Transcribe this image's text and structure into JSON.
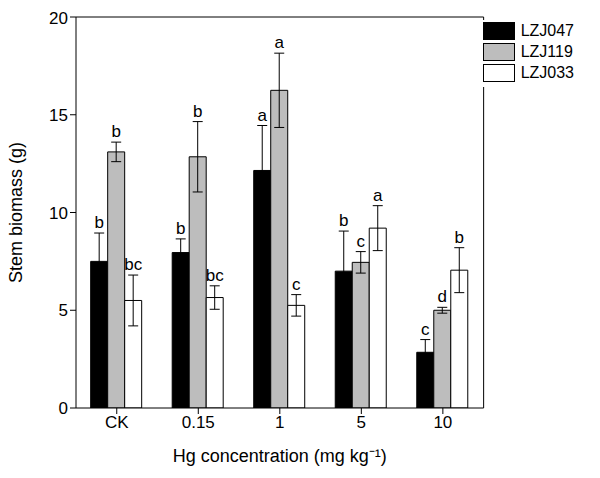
{
  "chart_data": {
    "type": "bar",
    "categories": [
      "CK",
      "0.15",
      "1",
      "5",
      "10"
    ],
    "x_label": "Hg concentration (mg kg⁻¹)",
    "y_label": "Stem biomass (g)",
    "ylim": [
      0,
      20
    ],
    "yticks": [
      0,
      5,
      10,
      15,
      20
    ],
    "legend": "upper right",
    "series": [
      {
        "name": "LZJ047",
        "color": "#000000",
        "values": [
          7.5,
          7.95,
          12.15,
          7.0,
          2.85
        ],
        "errors": [
          1.45,
          0.7,
          2.3,
          2.05,
          0.65
        ],
        "significance": [
          "b",
          "b",
          "a",
          "b",
          "c"
        ]
      },
      {
        "name": "LZJ119",
        "color": "#bdbdbd",
        "values": [
          13.1,
          12.85,
          16.25,
          7.45,
          5.0
        ],
        "errors": [
          0.5,
          1.8,
          1.9,
          0.55,
          0.15
        ],
        "significance": [
          "b",
          "b",
          "a",
          "c",
          "d"
        ]
      },
      {
        "name": "LZJ033",
        "color": "#ffffff",
        "values": [
          5.5,
          5.65,
          5.25,
          9.2,
          7.05
        ],
        "errors": [
          1.3,
          0.6,
          0.55,
          1.15,
          1.15
        ],
        "significance": [
          "bc",
          "bc",
          "c",
          "a",
          "b"
        ]
      }
    ]
  }
}
